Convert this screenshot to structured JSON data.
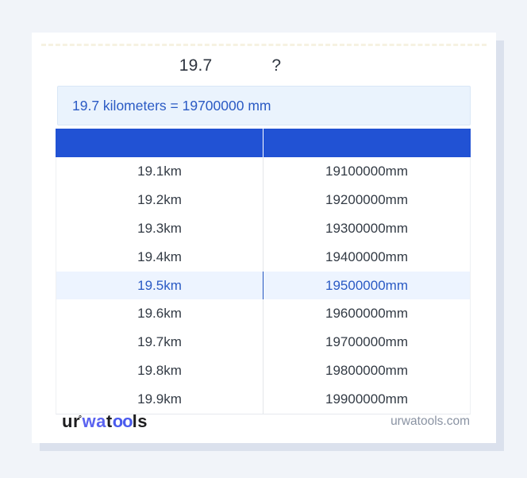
{
  "heading": {
    "value": "19.7",
    "question_mark": "?"
  },
  "result_box": {
    "text": "19.7 kilometers = 19700000 mm"
  },
  "table": {
    "columns": [
      {
        "label": ""
      },
      {
        "label": ""
      }
    ],
    "highlighted_row_index": 4,
    "rows": [
      {
        "km": "19.1km",
        "mm": "19100000mm"
      },
      {
        "km": "19.2km",
        "mm": "19200000mm"
      },
      {
        "km": "19.3km",
        "mm": "19300000mm"
      },
      {
        "km": "19.4km",
        "mm": "19400000mm"
      },
      {
        "km": "19.5km",
        "mm": "19500000mm"
      },
      {
        "km": "19.6km",
        "mm": "19600000mm"
      },
      {
        "km": "19.7km",
        "mm": "19700000mm"
      },
      {
        "km": "19.8km",
        "mm": "19800000mm"
      },
      {
        "km": "19.9km",
        "mm": "19900000mm"
      }
    ]
  },
  "footer": {
    "logo": {
      "part_ur": "ur",
      "degree": "°",
      "part_wa": "wa",
      "part_t": "t",
      "part_oo": "oo",
      "part_ls": "ls"
    },
    "site": "urwatools.com"
  },
  "colors": {
    "accent_blue": "#2152d4",
    "link_blue": "#2a5ac4",
    "highlight_row_bg": "#edf4ff",
    "result_box_bg": "#eaf3fd",
    "page_bg": "#f1f4f9",
    "card_shadow": "#dbe1ed",
    "logo_blue": "#5a63f0"
  }
}
